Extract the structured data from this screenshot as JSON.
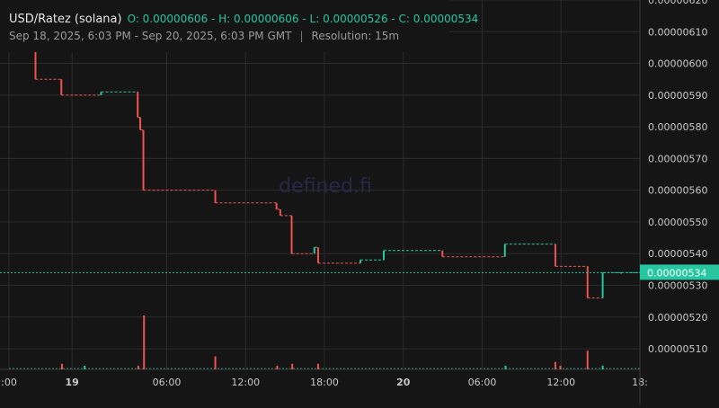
{
  "header": {
    "title": "USD/Ratez (solana)",
    "ohlc": "O: 0.00000606 - H: 0.00000606 - L: 0.00000526 - C: 0.00000534",
    "date_range": "Sep 18, 2025, 6:03 PM - Sep 20, 2025, 6:03 PM GMT",
    "resolution": "Resolution: 15m"
  },
  "watermark": "defined.fi",
  "last_price_label": "0.00000534",
  "colors": {
    "background": "#151515",
    "grid": "#2c2c2c",
    "up": "#26c6a1",
    "down": "#ef5350",
    "text": "#c8c8c8"
  },
  "chart_data": {
    "type": "candlestick",
    "grid": true,
    "price_axis": {
      "position": "right",
      "ylim": [
        5.035e-06,
        6.2e-06
      ],
      "ticks": [
        "0.00000510",
        "0.00000520",
        "0.00000530",
        "0.00000540",
        "0.00000550",
        "0.00000560",
        "0.00000570",
        "0.00000580",
        "0.00000590",
        "0.00000600",
        "0.00000610",
        "0.00000620"
      ]
    },
    "time_axis": {
      "ticks": [
        {
          "label": ":00",
          "t": 0.0
        },
        {
          "label": "19",
          "t": 0.1
        },
        {
          "label": "06:00",
          "t": 0.25
        },
        {
          "label": "12:00",
          "t": 0.375
        },
        {
          "label": "18:00",
          "t": 0.5
        },
        {
          "label": "20",
          "t": 0.625
        },
        {
          "label": "06:00",
          "t": 0.75
        },
        {
          "label": "12:00",
          "t": 0.875
        },
        {
          "label": "18:",
          "t": 1.0
        }
      ]
    },
    "candles": [
      {
        "t": 0.0,
        "open": 6.06e-06,
        "close": 6.06e-06
      },
      {
        "t": 0.042,
        "open": 6.06e-06,
        "close": 5.95e-06
      },
      {
        "t": 0.083,
        "open": 5.95e-06,
        "close": 5.9e-06
      },
      {
        "t": 0.146,
        "open": 5.9e-06,
        "close": 5.91e-06
      },
      {
        "t": 0.204,
        "open": 5.91e-06,
        "close": 5.83e-06
      },
      {
        "t": 0.208,
        "open": 5.83e-06,
        "close": 5.79e-06
      },
      {
        "t": 0.213,
        "open": 5.79e-06,
        "close": 5.6e-06
      },
      {
        "t": 0.327,
        "open": 5.6e-06,
        "close": 5.56e-06
      },
      {
        "t": 0.424,
        "open": 5.56e-06,
        "close": 5.54e-06
      },
      {
        "t": 0.43,
        "open": 5.54e-06,
        "close": 5.52e-06
      },
      {
        "t": 0.448,
        "open": 5.52e-06,
        "close": 5.4e-06
      },
      {
        "t": 0.484,
        "open": 5.4e-06,
        "close": 5.42e-06
      },
      {
        "t": 0.49,
        "open": 5.42e-06,
        "close": 5.37e-06
      },
      {
        "t": 0.557,
        "open": 5.37e-06,
        "close": 5.38e-06
      },
      {
        "t": 0.594,
        "open": 5.38e-06,
        "close": 5.41e-06
      },
      {
        "t": 0.687,
        "open": 5.41e-06,
        "close": 5.39e-06
      },
      {
        "t": 0.786,
        "open": 5.39e-06,
        "close": 5.43e-06
      },
      {
        "t": 0.866,
        "open": 5.43e-06,
        "close": 5.36e-06
      },
      {
        "t": 0.917,
        "open": 5.36e-06,
        "close": 5.26e-06
      },
      {
        "t": 0.941,
        "open": 5.26e-06,
        "close": 5.34e-06
      },
      {
        "t": 0.97,
        "open": 5.34e-06,
        "close": 5.34e-06
      }
    ],
    "volume_bars": [
      {
        "t": 0.084,
        "value": 3,
        "dir": "down"
      },
      {
        "t": 0.12,
        "value": 2,
        "dir": "up"
      },
      {
        "t": 0.205,
        "value": 2,
        "dir": "down"
      },
      {
        "t": 0.214,
        "value": 29,
        "dir": "down"
      },
      {
        "t": 0.327,
        "value": 7,
        "dir": "down"
      },
      {
        "t": 0.425,
        "value": 2,
        "dir": "down"
      },
      {
        "t": 0.449,
        "value": 3,
        "dir": "down"
      },
      {
        "t": 0.49,
        "value": 3,
        "dir": "down"
      },
      {
        "t": 0.787,
        "value": 2,
        "dir": "up"
      },
      {
        "t": 0.866,
        "value": 4,
        "dir": "down"
      },
      {
        "t": 0.874,
        "value": 2,
        "dir": "down"
      },
      {
        "t": 0.917,
        "value": 10,
        "dir": "down"
      },
      {
        "t": 0.941,
        "value": 2,
        "dir": "up"
      }
    ],
    "last_price": 5.34e-06
  }
}
